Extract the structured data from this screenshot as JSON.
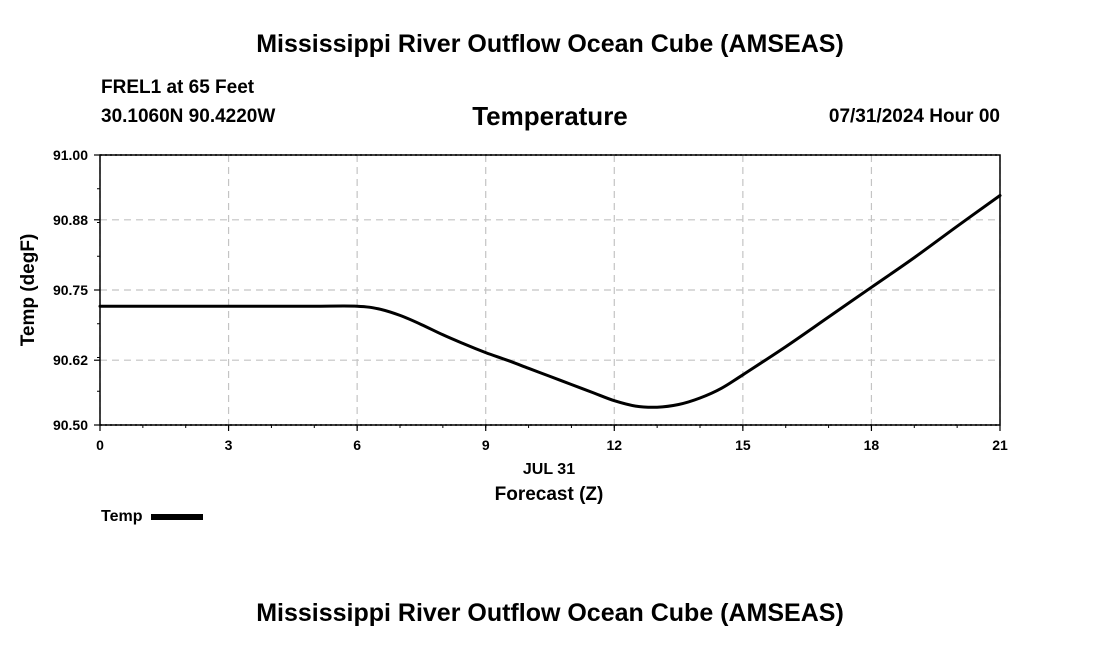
{
  "header": {
    "title": "Mississippi River Outflow Ocean Cube (AMSEAS)",
    "station": "FREL1 at 65 Feet",
    "coordinates": "30.1060N  90.4220W",
    "panel_title": "Temperature",
    "datetime": "07/31/2024 Hour 00"
  },
  "footer": {
    "title": "Mississippi River Outflow Ocean Cube (AMSEAS)"
  },
  "chart_data": {
    "type": "line",
    "title": "Temperature",
    "xlabel": "Forecast (Z)",
    "xlabel_date": "JUL 31",
    "ylabel": "Temp (degF)",
    "xlim": [
      0,
      21
    ],
    "ylim": [
      90.5,
      91.0
    ],
    "x_ticks": [
      "0",
      "3",
      "6",
      "9",
      "12",
      "15",
      "18",
      "21"
    ],
    "y_ticks": [
      "90.50",
      "90.62",
      "90.75",
      "90.88",
      "91.00"
    ],
    "grid": true,
    "legend_position": "bottom-left",
    "series": [
      {
        "name": "Temp",
        "color": "#000000",
        "x": [
          0,
          1,
          2,
          3,
          4,
          5,
          6,
          6.5,
          7,
          7.5,
          8,
          8.5,
          9,
          9.5,
          10,
          10.5,
          11,
          11.5,
          12,
          12.5,
          13,
          13.5,
          14,
          14.5,
          15,
          16,
          17,
          18,
          19,
          20,
          21
        ],
        "values": [
          90.72,
          90.72,
          90.72,
          90.72,
          90.72,
          90.72,
          90.72,
          90.715,
          90.703,
          90.686,
          90.667,
          90.65,
          90.634,
          90.62,
          90.605,
          90.59,
          90.575,
          90.56,
          90.545,
          90.535,
          90.533,
          90.538,
          90.55,
          90.568,
          90.593,
          90.645,
          90.7,
          90.755,
          90.81,
          90.868,
          90.925
        ]
      }
    ]
  }
}
